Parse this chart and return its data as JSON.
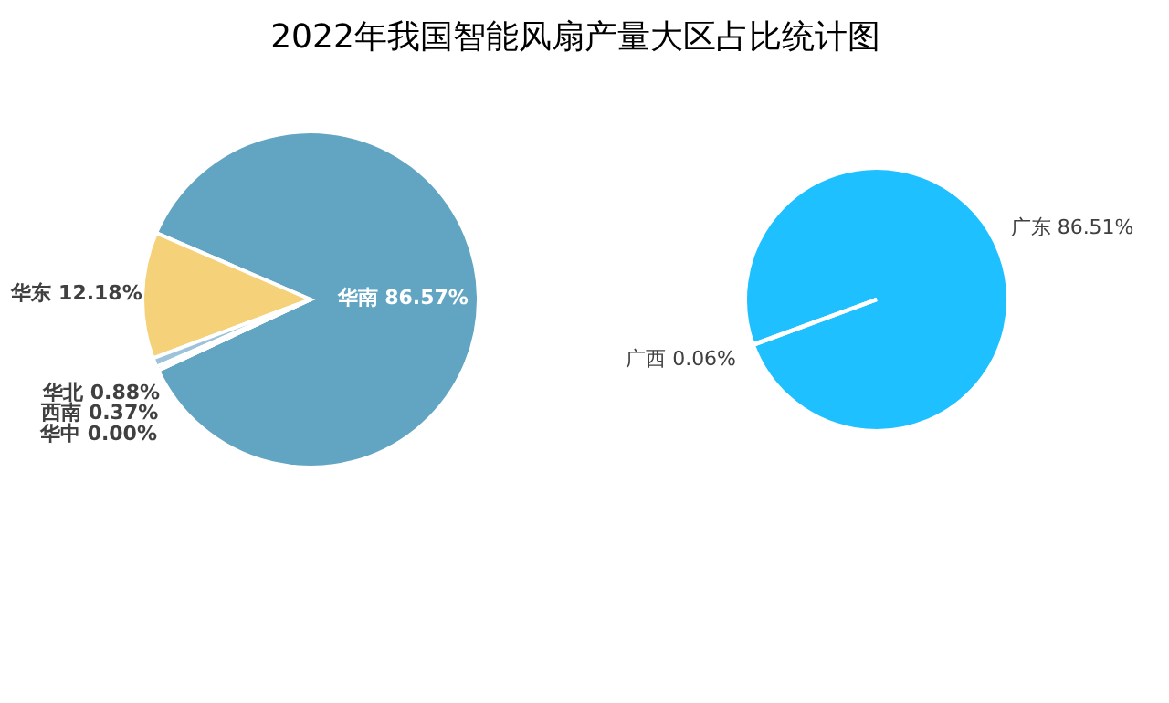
{
  "chart_data": [
    {
      "type": "pie",
      "title": "2022年我国智能风扇产量大区占比统计图",
      "categories": [
        "华南",
        "华东",
        "华北",
        "西南",
        "华中"
      ],
      "values": [
        86.57,
        12.18,
        0.88,
        0.37,
        0.0
      ],
      "value_labels": [
        "86.57%",
        "12.18%",
        "0.88%",
        "0.37%",
        "0.00%"
      ],
      "colors": [
        "#62a5c3",
        "#f5d27a",
        "#9cc3da",
        "#a5a5a5",
        "#70ad47"
      ]
    },
    {
      "type": "pie",
      "categories": [
        "广东",
        "广西"
      ],
      "values": [
        86.51,
        0.06
      ],
      "value_labels": [
        "86.51%",
        "0.06%"
      ],
      "colors": [
        "#1ec0ff",
        "#1ec0ff"
      ]
    }
  ]
}
